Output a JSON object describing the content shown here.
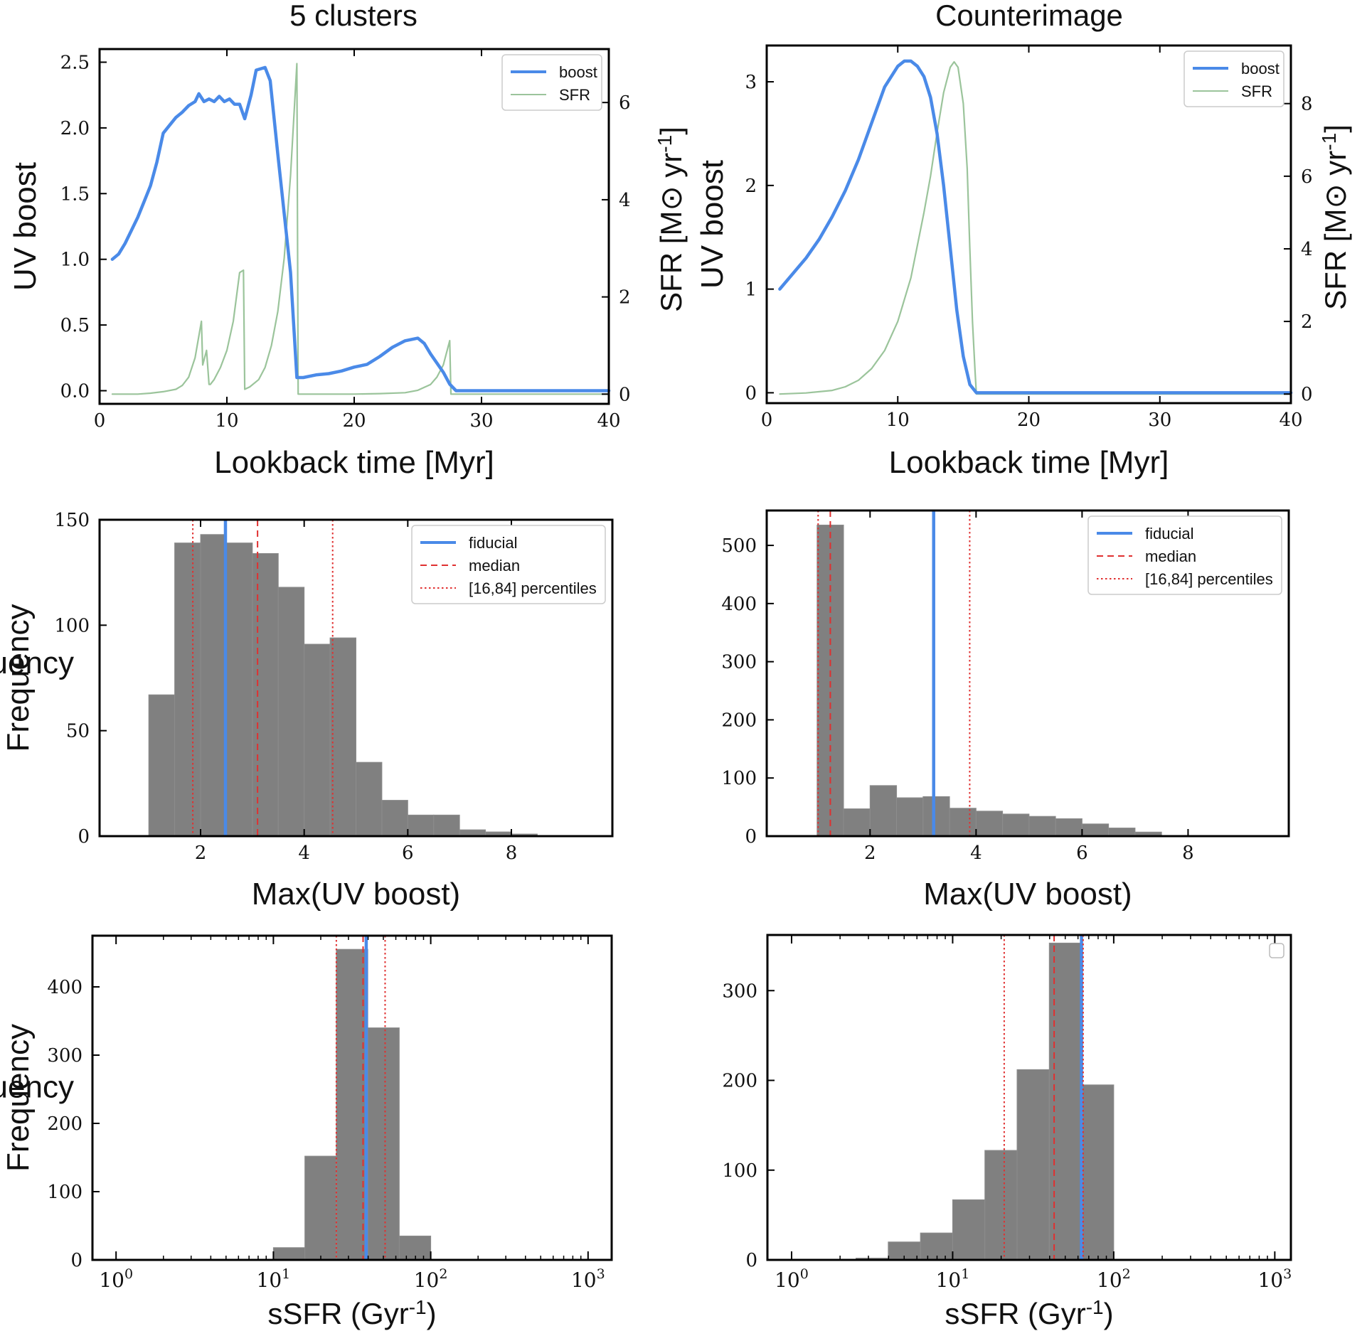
{
  "figure": {
    "columns": [
      {
        "title": "5 clusters"
      },
      {
        "title": "Counterimage"
      }
    ]
  },
  "chart_data": [
    {
      "type": "line",
      "panel": "5 clusters / boost vs SFR",
      "title": "5 clusters",
      "xlabel": "Lookback time [Myr]",
      "ylabel": "UV boost",
      "y2label": "SFR [M⊙ yr-1]",
      "xlim": [
        0,
        40
      ],
      "ylim": [
        -0.1,
        2.6
      ],
      "y2lim": [
        -0.2,
        7.1
      ],
      "xticks": [
        0,
        10,
        20,
        30,
        40
      ],
      "yticks": [
        0.0,
        0.5,
        1.0,
        1.5,
        2.0,
        2.5
      ],
      "ytick_labels": [
        "0.0",
        "0.5",
        "1.0",
        "1.5",
        "2.0",
        "2.5"
      ],
      "y2ticks": [
        0,
        2,
        4,
        6
      ],
      "legend": {
        "position": "top-right",
        "entries": [
          "boost",
          "SFR"
        ]
      },
      "series": [
        {
          "name": "boost",
          "axis": "left",
          "color": "#4a8ae8",
          "x": [
            1,
            1.5,
            2,
            2.5,
            3,
            3.5,
            4,
            4.5,
            5,
            5.5,
            6,
            6.5,
            7,
            7.5,
            7.8,
            8.2,
            8.6,
            9,
            9.4,
            9.8,
            10.2,
            10.6,
            11,
            11.4,
            11.9,
            12.3,
            13,
            13.4,
            14,
            15,
            15.5,
            16,
            17,
            18,
            19,
            20,
            21,
            22,
            23,
            24,
            25,
            25.5,
            26,
            27,
            27.5,
            28,
            30,
            35,
            40
          ],
          "y": [
            1.0,
            1.04,
            1.12,
            1.22,
            1.32,
            1.44,
            1.56,
            1.74,
            1.96,
            2.02,
            2.08,
            2.12,
            2.17,
            2.2,
            2.26,
            2.2,
            2.22,
            2.2,
            2.24,
            2.2,
            2.22,
            2.18,
            2.18,
            2.07,
            2.25,
            2.44,
            2.46,
            2.36,
            1.8,
            0.9,
            0.1,
            0.1,
            0.12,
            0.13,
            0.15,
            0.18,
            0.2,
            0.26,
            0.33,
            0.38,
            0.4,
            0.36,
            0.28,
            0.14,
            0.05,
            0.0,
            0.0,
            0.0,
            0.0
          ]
        },
        {
          "name": "SFR",
          "axis": "right",
          "color": "#9bc49b",
          "x": [
            1,
            2,
            3,
            4,
            5,
            6,
            6.5,
            7,
            7.5,
            8,
            8.1,
            8.4,
            8.6,
            8.7,
            9,
            9.5,
            10,
            10.5,
            11,
            11.3,
            11.4,
            11.8,
            12.5,
            13,
            13.5,
            14,
            14.5,
            15,
            15.5,
            15.6,
            15.7,
            16,
            18,
            20,
            22,
            24,
            25,
            26,
            26.5,
            27,
            27.5,
            27.6,
            28,
            30,
            40
          ],
          "y": [
            0.0,
            0.0,
            0.0,
            0.02,
            0.05,
            0.1,
            0.18,
            0.35,
            0.75,
            1.5,
            0.6,
            0.9,
            0.2,
            0.2,
            0.3,
            0.55,
            0.9,
            1.5,
            2.5,
            2.55,
            0.1,
            0.15,
            0.3,
            0.55,
            1.0,
            1.7,
            2.8,
            4.5,
            6.8,
            0.0,
            0.0,
            0.0,
            0.0,
            0.0,
            0.01,
            0.03,
            0.08,
            0.2,
            0.35,
            0.6,
            1.1,
            0.0,
            0.0,
            0.0,
            0.0
          ]
        }
      ]
    },
    {
      "type": "line",
      "panel": "Counterimage / boost vs SFR",
      "title": "Counterimage",
      "xlabel": "Lookback time [Myr]",
      "ylabel": "UV boost",
      "y2label": "SFR [M⊙ yr-1]",
      "xlim": [
        0,
        40
      ],
      "ylim": [
        -0.1,
        3.35
      ],
      "y2lim": [
        -0.25,
        9.6
      ],
      "xticks": [
        0,
        10,
        20,
        30,
        40
      ],
      "yticks": [
        0,
        1,
        2,
        3
      ],
      "ytick_labels": [
        "0",
        "1",
        "2",
        "3"
      ],
      "y2ticks": [
        0,
        2,
        4,
        6,
        8
      ],
      "legend": {
        "position": "top-right",
        "entries": [
          "boost",
          "SFR"
        ]
      },
      "series": [
        {
          "name": "boost",
          "axis": "left",
          "color": "#4a8ae8",
          "x": [
            1,
            2,
            3,
            4,
            5,
            6,
            7,
            8,
            9,
            10,
            10.5,
            11,
            11.5,
            12,
            12.5,
            13,
            13.5,
            14,
            14.5,
            15,
            15.5,
            16,
            20,
            30,
            40
          ],
          "y": [
            1.0,
            1.15,
            1.3,
            1.48,
            1.7,
            1.95,
            2.25,
            2.6,
            2.95,
            3.15,
            3.2,
            3.2,
            3.15,
            3.05,
            2.85,
            2.5,
            2.0,
            1.4,
            0.8,
            0.35,
            0.08,
            0.0,
            0.0,
            0.0,
            0.0
          ]
        },
        {
          "name": "SFR",
          "axis": "right",
          "color": "#9bc49b",
          "x": [
            1,
            3,
            5,
            6,
            7,
            8,
            9,
            10,
            11,
            12,
            12.5,
            13,
            13.5,
            14,
            14.3,
            14.6,
            15,
            15.3,
            15.5,
            15.7,
            15.9,
            16,
            20,
            30,
            40
          ],
          "y": [
            0.0,
            0.03,
            0.1,
            0.2,
            0.38,
            0.7,
            1.2,
            2.0,
            3.2,
            5.0,
            6.0,
            7.2,
            8.3,
            9.0,
            9.15,
            9.0,
            8.0,
            6.2,
            4.0,
            2.0,
            0.6,
            0.0,
            0.0,
            0.0,
            0.0
          ]
        }
      ]
    },
    {
      "type": "bar",
      "panel": "5 clusters / Max(UV boost) histogram",
      "xlabel": "Max(UV boost)",
      "ylabel": "Frequency",
      "xlim": [
        0.05,
        9.95
      ],
      "ylim": [
        0,
        150
      ],
      "xticks": [
        2,
        4,
        6,
        8
      ],
      "yticks": [
        0,
        50,
        100,
        150
      ],
      "bins": {
        "edges": [
          1.0,
          1.5,
          2.0,
          2.5,
          3.0,
          3.5,
          4.0,
          4.5,
          5.0,
          5.5,
          6.0,
          6.5,
          7.0,
          7.5,
          8.0,
          8.5
        ],
        "counts": [
          67,
          139,
          143,
          139,
          134,
          118,
          91,
          94,
          35,
          17,
          10,
          10,
          3,
          2,
          1
        ]
      },
      "lines": [
        {
          "name": "fiducial",
          "x": 2.48,
          "color": "#4a8ae8",
          "style": "solid"
        },
        {
          "name": "median",
          "x": 3.1,
          "color": "#e03030",
          "style": "dashed"
        },
        {
          "name": "16th percentile",
          "x": 1.85,
          "color": "#e03030",
          "style": "dotted"
        },
        {
          "name": "84th percentile",
          "x": 4.55,
          "color": "#e03030",
          "style": "dotted"
        }
      ],
      "legend": {
        "position": "top-right",
        "entries": [
          "fiducial",
          "median",
          "[16,84] percentiles"
        ]
      }
    },
    {
      "type": "bar",
      "panel": "Counterimage / Max(UV boost) histogram",
      "xlabel": "Max(UV boost)",
      "ylabel": "Frequency",
      "xlim": [
        0.05,
        9.9
      ],
      "ylim": [
        0,
        560
      ],
      "xticks": [
        2,
        4,
        6,
        8
      ],
      "yticks": [
        0,
        100,
        200,
        300,
        400,
        500
      ],
      "bins": {
        "edges": [
          1.0,
          1.5,
          2.0,
          2.5,
          3.0,
          3.5,
          4.0,
          4.5,
          5.0,
          5.5,
          6.0,
          6.5,
          7.0,
          7.5
        ],
        "counts": [
          535,
          47,
          87,
          66,
          68,
          48,
          43,
          38,
          34,
          30,
          21,
          14,
          7
        ]
      },
      "lines": [
        {
          "name": "fiducial",
          "x": 3.2,
          "color": "#4a8ae8",
          "style": "solid"
        },
        {
          "name": "median",
          "x": 1.25,
          "color": "#e03030",
          "style": "dashed"
        },
        {
          "name": "16th percentile",
          "x": 1.02,
          "color": "#e03030",
          "style": "dotted"
        },
        {
          "name": "84th percentile",
          "x": 3.88,
          "color": "#e03030",
          "style": "dotted"
        }
      ],
      "legend": {
        "position": "top-right",
        "entries": [
          "fiducial",
          "median",
          "[16,84] percentiles"
        ]
      }
    },
    {
      "type": "bar",
      "panel": "5 clusters / sSFR histogram",
      "xlabel": "sSFR (Gyr-1)",
      "ylabel": "Frequency",
      "xscale": "log",
      "xlim_log10": [
        -0.15,
        3.15
      ],
      "ylim": [
        0,
        475
      ],
      "xticks_log10": [
        0,
        1,
        2,
        3
      ],
      "yticks": [
        0,
        100,
        200,
        300,
        400
      ],
      "bins": {
        "edges_log10": [
          1.0,
          1.2,
          1.4,
          1.6,
          1.8,
          2.0
        ],
        "counts": [
          18,
          152,
          455,
          340,
          35
        ]
      },
      "lines": [
        {
          "name": "fiducial",
          "x_log10": 1.59,
          "color": "#4a8ae8",
          "style": "solid"
        },
        {
          "name": "median",
          "x_log10": 1.57,
          "color": "#e03030",
          "style": "dashed"
        },
        {
          "name": "16th percentile",
          "x_log10": 1.4,
          "color": "#e03030",
          "style": "dotted"
        },
        {
          "name": "84th percentile",
          "x_log10": 1.71,
          "color": "#e03030",
          "style": "dotted"
        }
      ]
    },
    {
      "type": "bar",
      "panel": "Counterimage / sSFR histogram",
      "xlabel": "sSFR (Gyr-1)",
      "ylabel": "Frequency",
      "xscale": "log",
      "xlim_log10": [
        -0.15,
        3.1
      ],
      "ylim": [
        0,
        362
      ],
      "xticks_log10": [
        0,
        1,
        2,
        3
      ],
      "yticks": [
        0,
        100,
        200,
        300
      ],
      "bins": {
        "edges_log10": [
          0.4,
          0.6,
          0.8,
          1.0,
          1.2,
          1.4,
          1.6,
          1.8,
          2.0
        ],
        "counts": [
          2,
          20,
          30,
          67,
          122,
          212,
          353,
          195
        ]
      },
      "lines": [
        {
          "name": "fiducial",
          "x_log10": 1.8,
          "color": "#4a8ae8",
          "style": "solid"
        },
        {
          "name": "median",
          "x_log10": 1.63,
          "color": "#e03030",
          "style": "dashed"
        },
        {
          "name": "16th percentile",
          "x_log10": 1.32,
          "color": "#e03030",
          "style": "dotted"
        },
        {
          "name": "84th percentile",
          "x_log10": 1.81,
          "color": "#e03030",
          "style": "dotted"
        }
      ],
      "legend": {
        "position": "top-right",
        "entries": []
      }
    }
  ]
}
